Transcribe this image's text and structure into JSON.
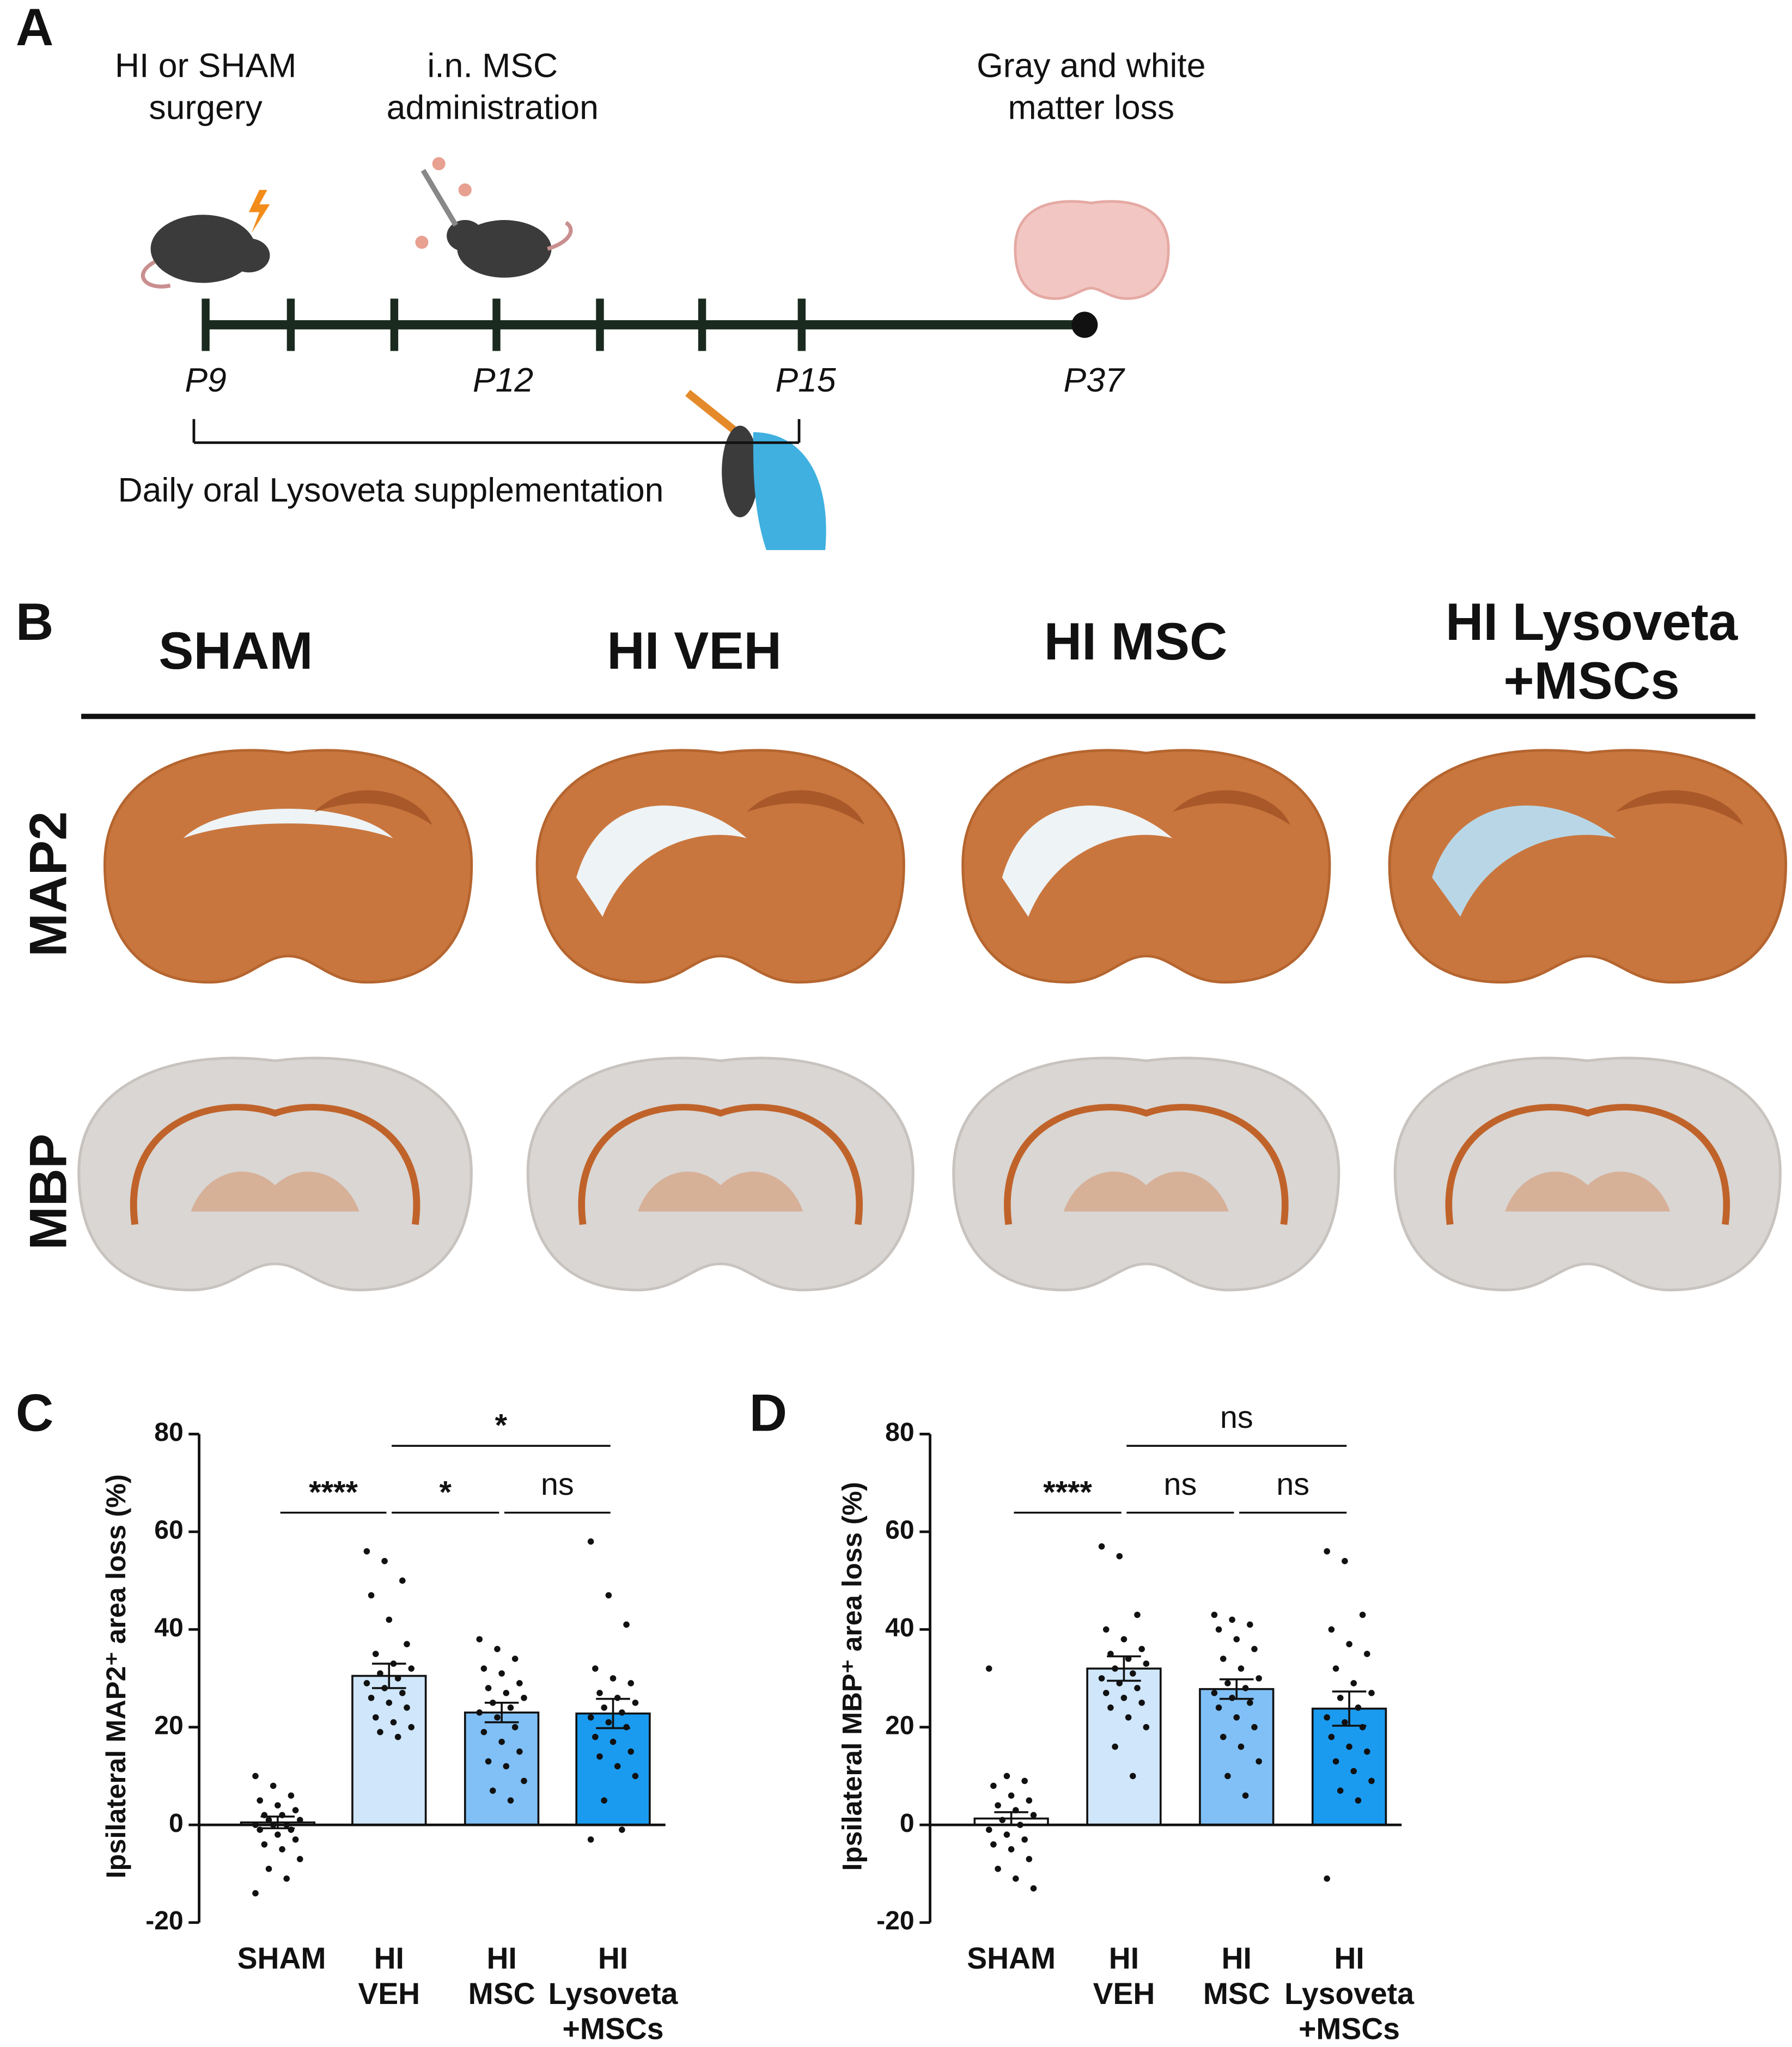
{
  "panels": [
    "A",
    "B",
    "C",
    "D"
  ],
  "timeline": {
    "events": [
      {
        "lines": [
          "HI or SHAM",
          "surgery"
        ]
      },
      {
        "lines": [
          "i.n. MSC",
          "administration"
        ]
      },
      {
        "lines": [
          "Gray and white",
          "matter loss"
        ]
      }
    ],
    "days": [
      "P9",
      "P12",
      "P15",
      "P37"
    ],
    "supplement": "Daily oral Lysoveta supplementation"
  },
  "images": {
    "groups": [
      [
        "SHAM"
      ],
      [
        "HI VEH"
      ],
      [
        "HI MSC"
      ],
      [
        "HI Lysoveta",
        "+MSCs"
      ]
    ],
    "stains": [
      "MAP2",
      "MBP"
    ]
  },
  "chart_data": [
    {
      "type": "bar",
      "ylabel": "Ipsilateral MAP2⁺ area loss (%)",
      "categories": [
        [
          "SHAM"
        ],
        [
          "HI",
          "VEH"
        ],
        [
          "HI",
          "MSC"
        ],
        [
          "HI",
          "Lysoveta",
          "+MSCs"
        ]
      ],
      "values": [
        0.5,
        30.5,
        23,
        22.8
      ],
      "errors": [
        1.2,
        2.5,
        2,
        3
      ],
      "colors": [
        "#ffffff",
        "#cfe6fb",
        "#80c0f6",
        "#1a9bf0"
      ],
      "points": [
        [
          10,
          8,
          6,
          5,
          4,
          3,
          2,
          2,
          1,
          1,
          0,
          0,
          0,
          -1,
          -1,
          -2,
          -3,
          -4,
          -5,
          -7,
          -9,
          -11,
          -14
        ],
        [
          56,
          54,
          50,
          47,
          42,
          37,
          35,
          33,
          32,
          31,
          30,
          29,
          28,
          27,
          26,
          25,
          24,
          22,
          21,
          20,
          19,
          18
        ],
        [
          38,
          36,
          34,
          32,
          31,
          29,
          28,
          27,
          26,
          25,
          24,
          23,
          22,
          20,
          19,
          17,
          15,
          13,
          12,
          9,
          7,
          5
        ],
        [
          58,
          47,
          41,
          32,
          30,
          29,
          27,
          26,
          25,
          24,
          23,
          22,
          21,
          20,
          18,
          17,
          15,
          14,
          12,
          10,
          5,
          -1,
          -3
        ]
      ],
      "annotations": [
        "****",
        "*",
        "ns",
        "*"
      ],
      "ylim": [
        -20,
        80
      ],
      "yticks": [
        -20,
        0,
        20,
        40,
        60,
        80
      ]
    },
    {
      "type": "bar",
      "ylabel": "Ipsilateral MBP⁺ area loss (%)",
      "categories": [
        [
          "SHAM"
        ],
        [
          "HI",
          "VEH"
        ],
        [
          "HI",
          "MSC"
        ],
        [
          "HI",
          "Lysoveta",
          "+MSCs"
        ]
      ],
      "values": [
        1.3,
        32,
        27.8,
        23.8
      ],
      "errors": [
        1.3,
        2.5,
        2,
        3.5
      ],
      "colors": [
        "#ffffff",
        "#cfe6fb",
        "#80c0f6",
        "#1a9bf0"
      ],
      "points": [
        [
          32,
          10,
          9,
          8,
          6,
          5,
          4,
          3,
          2,
          1,
          0,
          -1,
          -2,
          -3,
          -4,
          -5,
          -7,
          -9,
          -11,
          -13
        ],
        [
          57,
          55,
          43,
          40,
          38,
          36,
          35,
          34,
          33,
          32,
          31,
          30,
          29,
          28,
          27,
          26,
          25,
          24,
          22,
          20,
          16,
          10
        ],
        [
          43,
          42,
          41,
          40,
          38,
          36,
          34,
          32,
          30,
          29,
          28,
          27,
          26,
          25,
          24,
          22,
          20,
          18,
          16,
          13,
          10,
          6
        ],
        [
          56,
          54,
          43,
          40,
          37,
          35,
          32,
          29,
          27,
          26,
          24,
          22,
          21,
          20,
          18,
          16,
          15,
          13,
          11,
          9,
          7,
          5,
          -11
        ]
      ],
      "annotations": [
        "****",
        "ns",
        "ns",
        "ns"
      ],
      "ylim": [
        -20,
        80
      ],
      "yticks": [
        -20,
        0,
        20,
        40,
        60,
        80
      ]
    }
  ]
}
